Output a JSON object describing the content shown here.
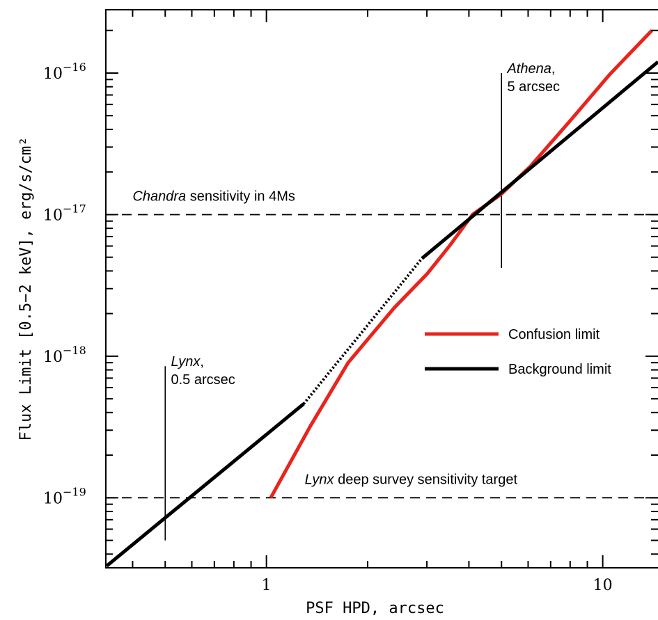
{
  "chart_data": {
    "type": "line",
    "title": "",
    "xlabel": "PSF HPD, arcsec",
    "ylabel": "Flux Limit [0.5−2 keV], erg/s/cm²",
    "xscale": "log",
    "yscale": "log",
    "xlim": [
      0.333,
      14.6
    ],
    "ylim": [
      3.2e-20,
      2.8e-16
    ],
    "x_tick_labels": [
      {
        "value": 1,
        "label": "1"
      },
      {
        "value": 10,
        "label": "10"
      }
    ],
    "y_tick_labels": [
      {
        "value": 1e-19,
        "base": "10",
        "exp": "−19"
      },
      {
        "value": 1e-18,
        "base": "10",
        "exp": "−18"
      },
      {
        "value": 1e-17,
        "base": "10",
        "exp": "−17"
      },
      {
        "value": 1e-16,
        "base": "10",
        "exp": "−16"
      }
    ],
    "series": [
      {
        "name": "Confusion limit",
        "color": "#e8241d",
        "x": [
          1.03,
          1.35,
          1.75,
          2.4,
          3.0,
          3.5,
          4.1,
          5.0,
          6.1,
          8.0,
          10.5,
          14.0
        ],
        "y": [
          1e-19,
          3.2e-19,
          9e-19,
          2.2e-18,
          3.8e-18,
          6e-18,
          1e-17,
          1.4e-17,
          2.2e-17,
          4.6e-17,
          9.8e-17,
          2e-16
        ]
      },
      {
        "name": "Background limit",
        "color": "#000000",
        "segments": [
          {
            "style": "solid",
            "x": [
              0.335,
              1.29
            ],
            "y": [
              3.3e-20,
              4.6e-19
            ]
          },
          {
            "style": "dotted",
            "x": [
              1.29,
              2.9
            ],
            "y": [
              4.6e-19,
              4.9e-18
            ]
          },
          {
            "style": "solid",
            "x": [
              2.9,
              14.6
            ],
            "y": [
              4.9e-18,
              1.2e-16
            ]
          }
        ]
      }
    ],
    "hlines": [
      {
        "y": 1e-17,
        "style": "dashed",
        "label_italic": "Chandra",
        "label_rest": " sensitivity in 4Ms",
        "label_x": 0.4,
        "label_y": 1.25e-17
      },
      {
        "y": 1e-19,
        "style": "dashed",
        "label_italic": "Lynx",
        "label_rest": " deep survey sensitivity target",
        "label_x": 1.3,
        "label_y": 1.25e-19
      }
    ],
    "vlines": [
      {
        "x": 0.5,
        "y_range": [
          5e-20,
          8.5e-19
        ],
        "label_italic": "Lynx",
        "label_line1_rest": ",",
        "label_line2": "0.5 arcsec",
        "label_x": 0.52,
        "label_y": 8.5e-19
      },
      {
        "x": 5.0,
        "y_range": [
          4.2e-18,
          1e-16
        ],
        "label_italic": "Athena",
        "label_line1_rest": ",",
        "label_line2": "5 arcsec",
        "label_x": 5.2,
        "label_y": 1e-16
      }
    ],
    "legend": {
      "placement": "center-right",
      "entries": [
        {
          "name": "Confusion limit",
          "color": "#e8241d"
        },
        {
          "name": "Background limit",
          "color": "#000000"
        }
      ]
    },
    "grid": false
  }
}
